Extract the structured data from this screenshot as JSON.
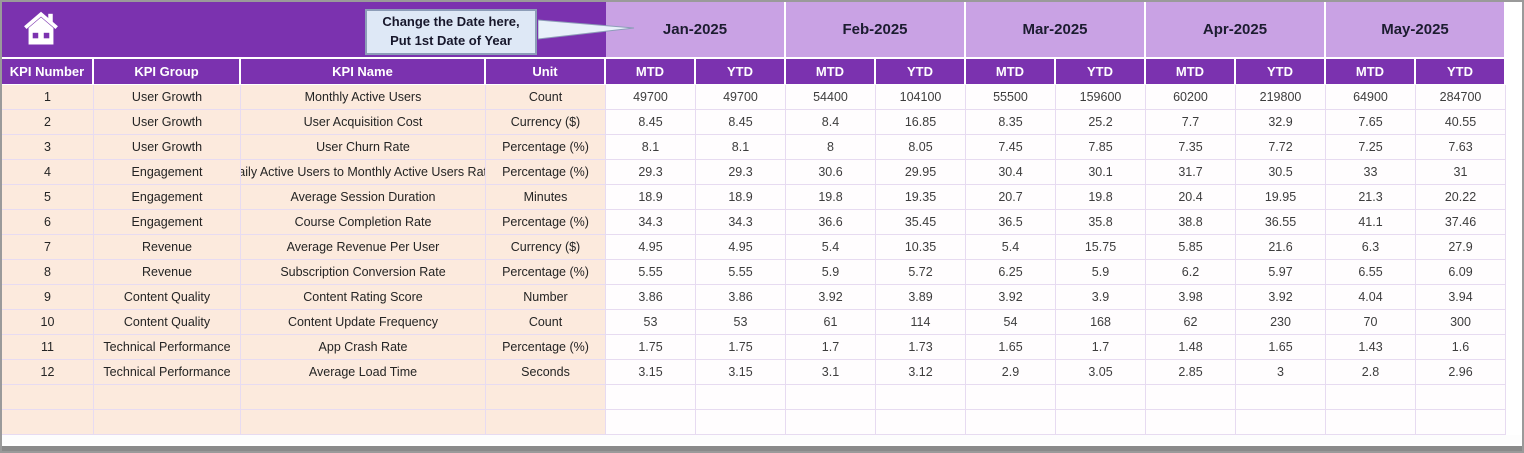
{
  "banner": {
    "callout": {
      "line1": "Change the Date here,",
      "line2": "Put 1st Date of Year"
    }
  },
  "months": [
    "Jan-2025",
    "Feb-2025",
    "Mar-2025",
    "Apr-2025",
    "May-2025"
  ],
  "table": {
    "headers": [
      "KPI Number",
      "KPI Group",
      "KPI Name",
      "Unit"
    ],
    "sub_headers": [
      "MTD",
      "YTD"
    ],
    "empty_row_count": 2,
    "rows": [
      {
        "number": "1",
        "group": "User Growth",
        "name": "Monthly Active Users",
        "unit": "Count",
        "values": [
          "49700",
          "49700",
          "54400",
          "104100",
          "55500",
          "159600",
          "60200",
          "219800",
          "64900",
          "284700"
        ]
      },
      {
        "number": "2",
        "group": "User Growth",
        "name": "User Acquisition Cost",
        "unit": "Currency ($)",
        "values": [
          "8.45",
          "8.45",
          "8.4",
          "16.85",
          "8.35",
          "25.2",
          "7.7",
          "32.9",
          "7.65",
          "40.55"
        ]
      },
      {
        "number": "3",
        "group": "User Growth",
        "name": "User Churn Rate",
        "unit": "Percentage (%)",
        "values": [
          "8.1",
          "8.1",
          "8",
          "8.05",
          "7.45",
          "7.85",
          "7.35",
          "7.72",
          "7.25",
          "7.63"
        ]
      },
      {
        "number": "4",
        "group": "Engagement",
        "name": "Daily Active Users to Monthly Active Users Ratio",
        "unit": "Percentage (%)",
        "values": [
          "29.3",
          "29.3",
          "30.6",
          "29.95",
          "30.4",
          "30.1",
          "31.7",
          "30.5",
          "33",
          "31"
        ]
      },
      {
        "number": "5",
        "group": "Engagement",
        "name": "Average Session Duration",
        "unit": "Minutes",
        "values": [
          "18.9",
          "18.9",
          "19.8",
          "19.35",
          "20.7",
          "19.8",
          "20.4",
          "19.95",
          "21.3",
          "20.22"
        ]
      },
      {
        "number": "6",
        "group": "Engagement",
        "name": "Course Completion Rate",
        "unit": "Percentage (%)",
        "values": [
          "34.3",
          "34.3",
          "36.6",
          "35.45",
          "36.5",
          "35.8",
          "38.8",
          "36.55",
          "41.1",
          "37.46"
        ]
      },
      {
        "number": "7",
        "group": "Revenue",
        "name": "Average Revenue Per User",
        "unit": "Currency ($)",
        "values": [
          "4.95",
          "4.95",
          "5.4",
          "10.35",
          "5.4",
          "15.75",
          "5.85",
          "21.6",
          "6.3",
          "27.9"
        ]
      },
      {
        "number": "8",
        "group": "Revenue",
        "name": "Subscription Conversion Rate",
        "unit": "Percentage (%)",
        "values": [
          "5.55",
          "5.55",
          "5.9",
          "5.72",
          "6.25",
          "5.9",
          "6.2",
          "5.97",
          "6.55",
          "6.09"
        ]
      },
      {
        "number": "9",
        "group": "Content Quality",
        "name": "Content Rating Score",
        "unit": "Number",
        "values": [
          "3.86",
          "3.86",
          "3.92",
          "3.89",
          "3.92",
          "3.9",
          "3.98",
          "3.92",
          "4.04",
          "3.94"
        ]
      },
      {
        "number": "10",
        "group": "Content Quality",
        "name": "Content Update Frequency",
        "unit": "Count",
        "values": [
          "53",
          "53",
          "61",
          "114",
          "54",
          "168",
          "62",
          "230",
          "70",
          "300"
        ]
      },
      {
        "number": "11",
        "group": "Technical Performance",
        "name": "App Crash Rate",
        "unit": "Percentage (%)",
        "values": [
          "1.75",
          "1.75",
          "1.7",
          "1.73",
          "1.65",
          "1.7",
          "1.48",
          "1.65",
          "1.43",
          "1.6"
        ]
      },
      {
        "number": "12",
        "group": "Technical Performance",
        "name": "Average Load Time",
        "unit": "Seconds",
        "values": [
          "3.15",
          "3.15",
          "3.1",
          "3.12",
          "2.9",
          "3.05",
          "2.85",
          "3",
          "2.8",
          "2.96"
        ]
      }
    ]
  },
  "colors": {
    "purple_dark": "#7b32af",
    "purple_light": "#c9a2e4",
    "peach": "#fceadd",
    "callout_bg": "#dee8f6",
    "grid_line": "#e7dbf1"
  }
}
